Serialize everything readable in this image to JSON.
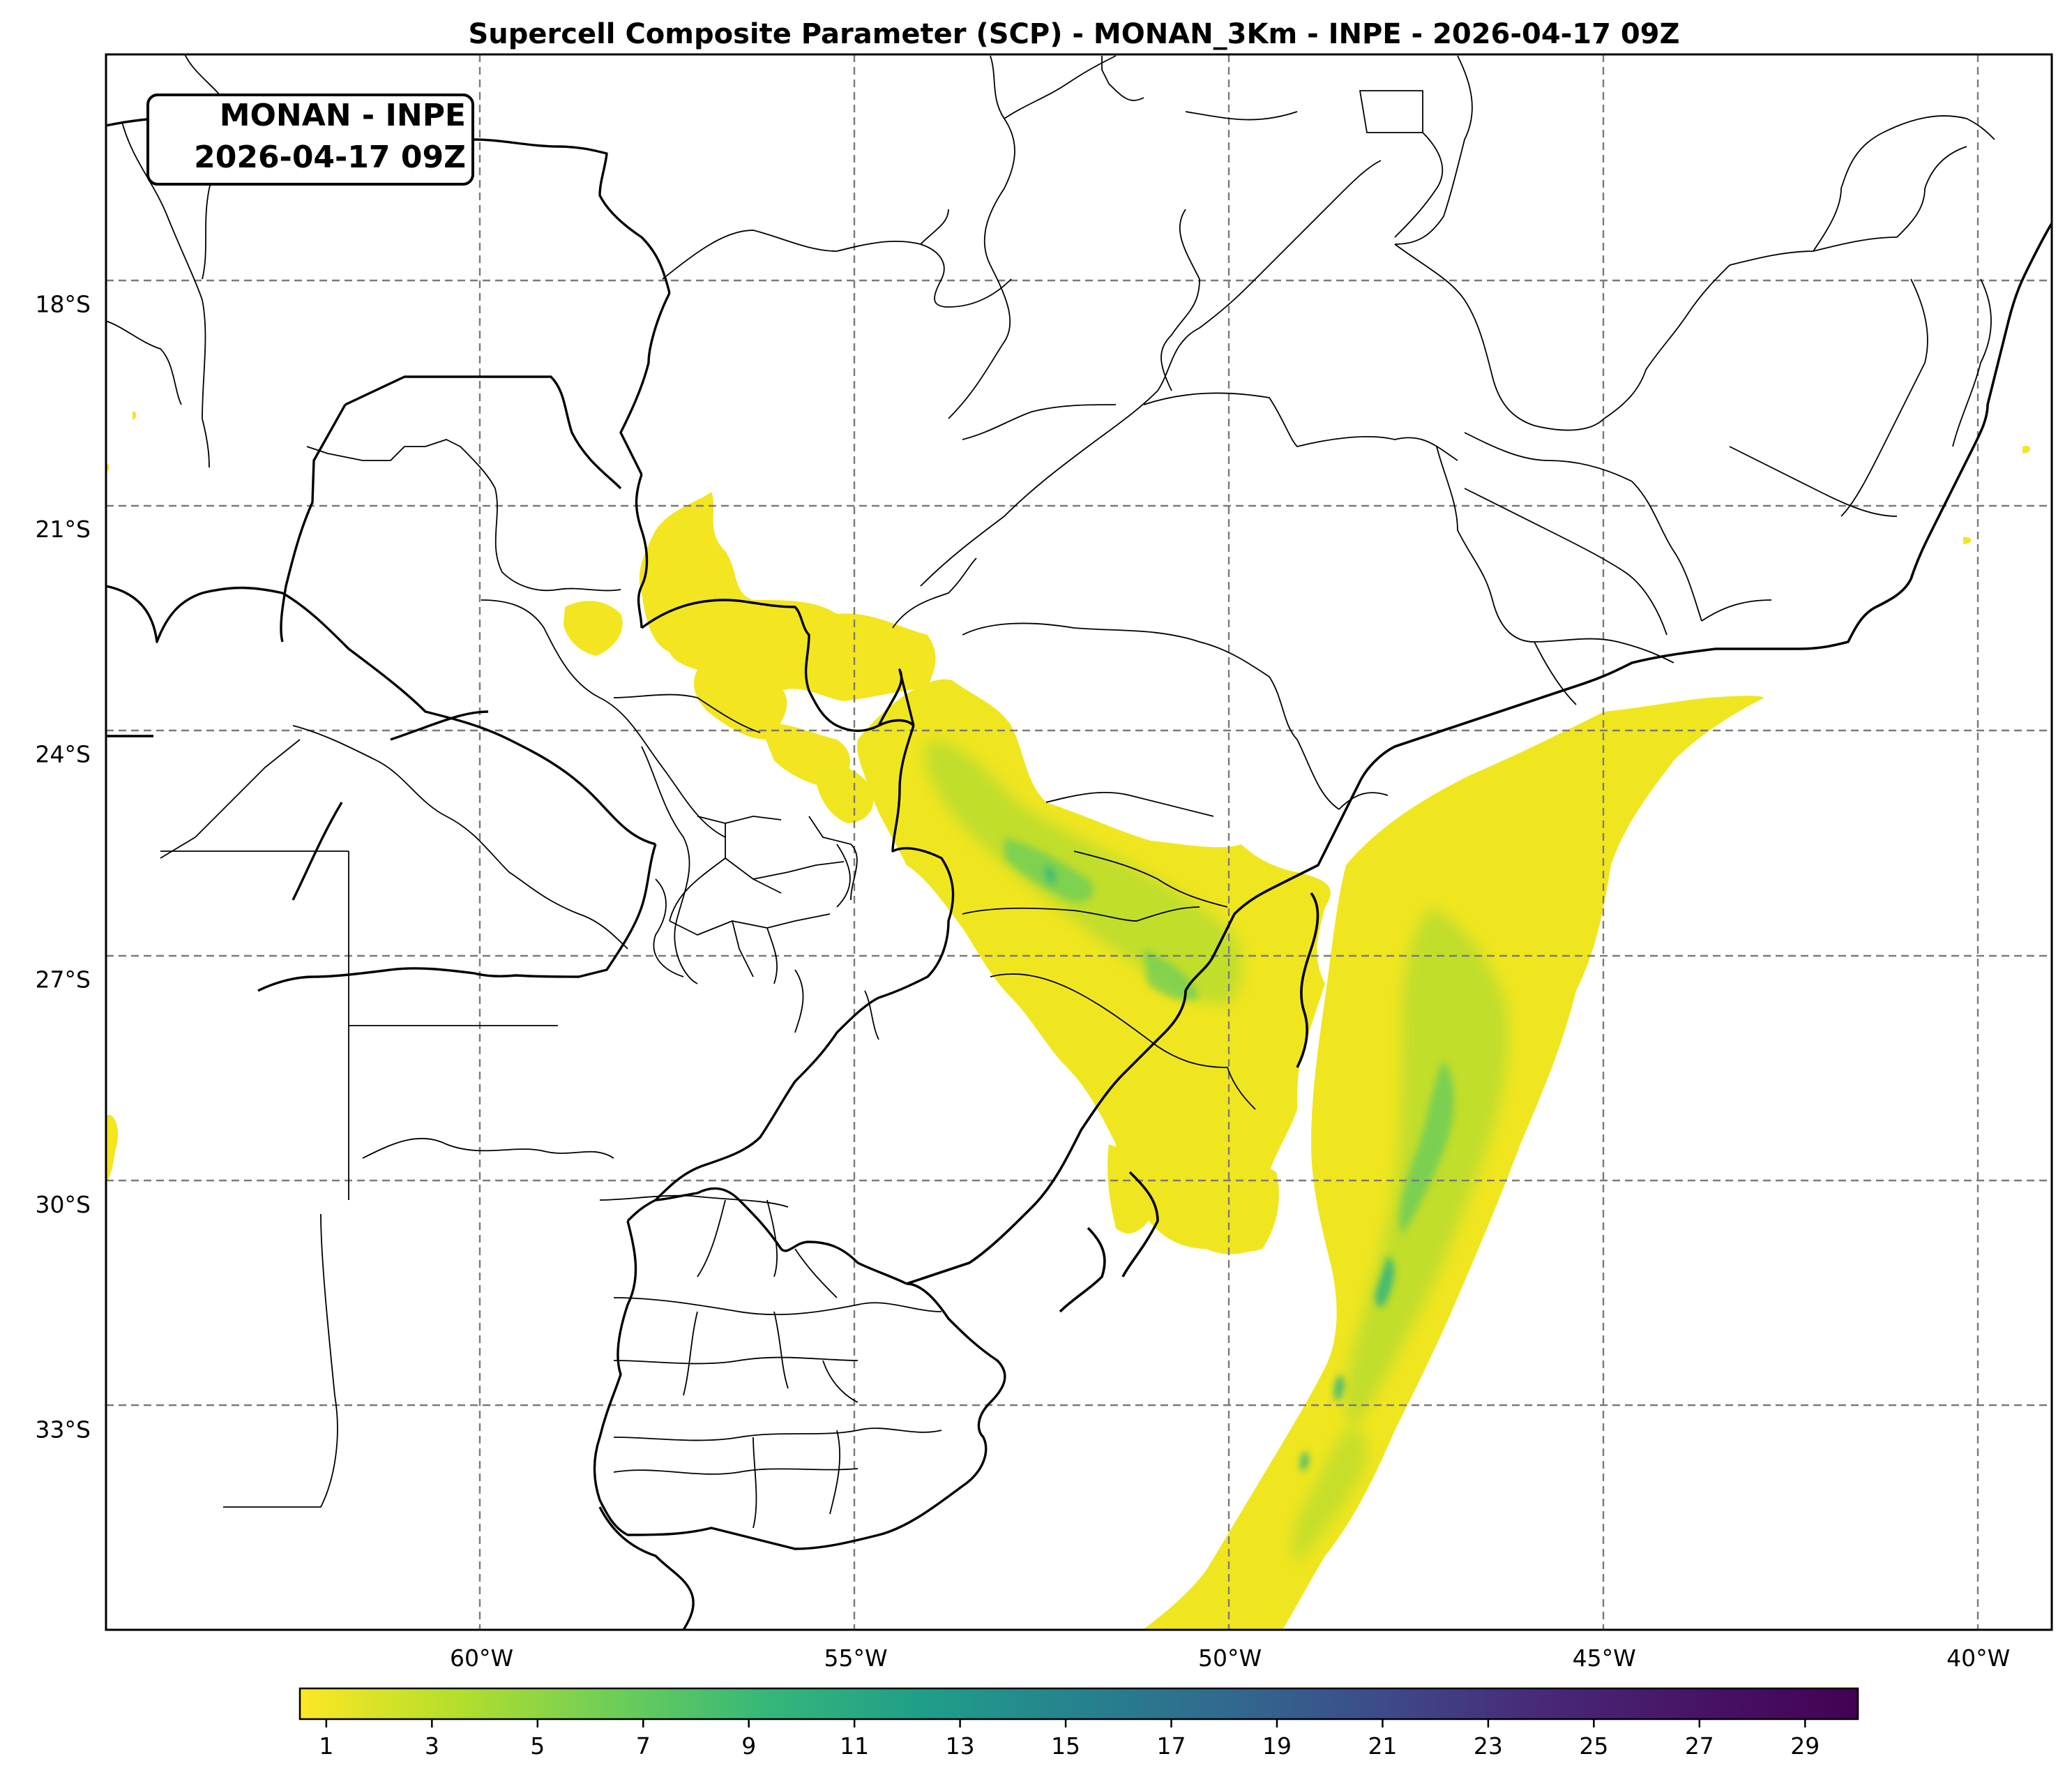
{
  "title": "Supercell Composite Parameter (SCP) - MONAN_3Km - INPE - 2026-04-17 09Z",
  "stamp": {
    "line1": "MONAN - INPE",
    "line2": "2026-04-17 09Z"
  },
  "map": {
    "lon_range": [
      -65,
      -39
    ],
    "lat_range": [
      -36,
      -15
    ],
    "x_ticks": [
      {
        "value": -60,
        "label": "60°W"
      },
      {
        "value": -55,
        "label": "55°W"
      },
      {
        "value": -50,
        "label": "50°W"
      },
      {
        "value": -45,
        "label": "45°W"
      },
      {
        "value": -40,
        "label": "40°W"
      }
    ],
    "y_ticks": [
      {
        "value": -18,
        "label": "18°S"
      },
      {
        "value": -21,
        "label": "21°S"
      },
      {
        "value": -24,
        "label": "24°S"
      },
      {
        "value": -27,
        "label": "27°S"
      },
      {
        "value": -30,
        "label": "30°S"
      },
      {
        "value": -33,
        "label": "33°S"
      }
    ],
    "grid": true,
    "gridline_style": "dashed"
  },
  "colorbar": {
    "colormap": "viridis_r",
    "range": [
      0.5,
      30
    ],
    "tick_labels": [
      "1",
      "3",
      "5",
      "7",
      "9",
      "11",
      "13",
      "15",
      "17",
      "19",
      "21",
      "23",
      "25",
      "27",
      "29"
    ]
  },
  "colors": {
    "low": "#fde725",
    "mid": "#5ec962",
    "high": "#21918c",
    "max": "#440154"
  }
}
